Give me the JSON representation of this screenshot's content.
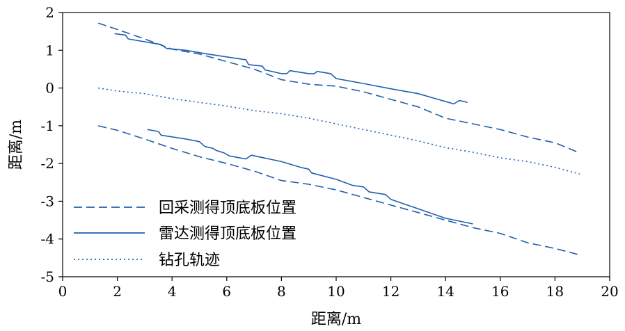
{
  "chart_data": {
    "type": "line",
    "xlabel": "距离/m",
    "ylabel": "距离/m",
    "xlim": [
      0,
      20
    ],
    "ylim": [
      -5,
      2
    ],
    "xticks": [
      0,
      2,
      4,
      6,
      8,
      10,
      12,
      14,
      16,
      18,
      20
    ],
    "yticks": [
      2,
      1,
      0,
      -1,
      -2,
      -3,
      -4,
      -5
    ],
    "grid": false,
    "legend_position": "lower-left",
    "color": "#1f5fae",
    "legend": [
      {
        "label": "回采测得顶底板位置",
        "style": "dashed"
      },
      {
        "label": "雷达测得顶底板位置",
        "style": "solid"
      },
      {
        "label": "钻孔轨迹",
        "style": "dotted"
      }
    ],
    "series": [
      {
        "name": "回采测得顶底板位置",
        "style": "dashed",
        "part": "top",
        "points": [
          [
            1.3,
            1.72
          ],
          [
            2,
            1.55
          ],
          [
            3,
            1.3
          ],
          [
            4,
            1.03
          ],
          [
            5,
            0.9
          ],
          [
            6,
            0.7
          ],
          [
            7,
            0.5
          ],
          [
            8,
            0.22
          ],
          [
            9,
            0.1
          ],
          [
            10,
            0.05
          ],
          [
            11,
            -0.1
          ],
          [
            12,
            -0.3
          ],
          [
            13,
            -0.5
          ],
          [
            14,
            -0.8
          ],
          [
            15,
            -0.95
          ],
          [
            16,
            -1.1
          ],
          [
            17,
            -1.3
          ],
          [
            18,
            -1.45
          ],
          [
            18.9,
            -1.72
          ]
        ]
      },
      {
        "name": "回采测得顶底板位置",
        "style": "dashed",
        "part": "bottom",
        "points": [
          [
            1.3,
            -1.0
          ],
          [
            2,
            -1.12
          ],
          [
            3,
            -1.35
          ],
          [
            4,
            -1.6
          ],
          [
            5,
            -1.82
          ],
          [
            6,
            -2.0
          ],
          [
            7,
            -2.2
          ],
          [
            8,
            -2.45
          ],
          [
            9,
            -2.55
          ],
          [
            10,
            -2.7
          ],
          [
            11,
            -2.9
          ],
          [
            12,
            -3.1
          ],
          [
            13,
            -3.3
          ],
          [
            14,
            -3.5
          ],
          [
            15,
            -3.7
          ],
          [
            16,
            -3.85
          ],
          [
            17,
            -4.1
          ],
          [
            18,
            -4.25
          ],
          [
            18.9,
            -4.42
          ]
        ]
      },
      {
        "name": "雷达测得顶底板位置",
        "style": "solid",
        "part": "top",
        "points": [
          [
            1.9,
            1.44
          ],
          [
            2.3,
            1.4
          ],
          [
            2.4,
            1.3
          ],
          [
            3.2,
            1.2
          ],
          [
            3.6,
            1.15
          ],
          [
            3.8,
            1.05
          ],
          [
            4.5,
            1.0
          ],
          [
            5.3,
            0.9
          ],
          [
            6.2,
            0.8
          ],
          [
            6.7,
            0.75
          ],
          [
            6.8,
            0.62
          ],
          [
            7.3,
            0.58
          ],
          [
            7.4,
            0.48
          ],
          [
            8.0,
            0.38
          ],
          [
            8.2,
            0.38
          ],
          [
            8.3,
            0.46
          ],
          [
            9.0,
            0.38
          ],
          [
            9.2,
            0.38
          ],
          [
            9.3,
            0.44
          ],
          [
            9.8,
            0.38
          ],
          [
            10,
            0.25
          ],
          [
            11,
            0.12
          ],
          [
            12,
            -0.02
          ],
          [
            13,
            -0.15
          ],
          [
            14.3,
            -0.42
          ],
          [
            14.5,
            -0.33
          ],
          [
            14.8,
            -0.38
          ]
        ]
      },
      {
        "name": "雷达测得顶底板位置",
        "style": "solid",
        "part": "bottom",
        "points": [
          [
            3.1,
            -1.1
          ],
          [
            3.5,
            -1.15
          ],
          [
            3.6,
            -1.25
          ],
          [
            4.5,
            -1.35
          ],
          [
            5.0,
            -1.42
          ],
          [
            5.2,
            -1.55
          ],
          [
            5.5,
            -1.6
          ],
          [
            5.6,
            -1.65
          ],
          [
            5.9,
            -1.72
          ],
          [
            6.1,
            -1.8
          ],
          [
            6.7,
            -1.88
          ],
          [
            6.9,
            -1.78
          ],
          [
            8.0,
            -1.95
          ],
          [
            8.7,
            -2.1
          ],
          [
            9.0,
            -2.15
          ],
          [
            9.1,
            -2.25
          ],
          [
            10.0,
            -2.42
          ],
          [
            10.6,
            -2.58
          ],
          [
            11.0,
            -2.62
          ],
          [
            11.2,
            -2.75
          ],
          [
            11.8,
            -2.82
          ],
          [
            12.0,
            -2.95
          ],
          [
            12.6,
            -3.1
          ],
          [
            13.0,
            -3.2
          ],
          [
            13.4,
            -3.3
          ],
          [
            14.0,
            -3.45
          ],
          [
            15.0,
            -3.6
          ]
        ]
      },
      {
        "name": "钻孔轨迹",
        "style": "dotted",
        "part": "borehole",
        "points": [
          [
            1.3,
            0.0
          ],
          [
            2,
            -0.08
          ],
          [
            3,
            -0.15
          ],
          [
            4,
            -0.28
          ],
          [
            5,
            -0.38
          ],
          [
            6,
            -0.48
          ],
          [
            7,
            -0.6
          ],
          [
            8,
            -0.68
          ],
          [
            9,
            -0.8
          ],
          [
            10,
            -0.95
          ],
          [
            11,
            -1.1
          ],
          [
            12,
            -1.25
          ],
          [
            13,
            -1.4
          ],
          [
            14,
            -1.58
          ],
          [
            15,
            -1.7
          ],
          [
            16,
            -1.85
          ],
          [
            17,
            -1.95
          ],
          [
            18,
            -2.1
          ],
          [
            18.9,
            -2.28
          ]
        ]
      }
    ]
  }
}
